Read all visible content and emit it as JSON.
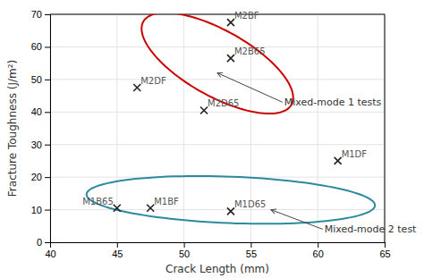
{
  "chart_data": {
    "type": "scatter",
    "x": [
      53.5,
      53.5,
      46.5,
      51.5,
      61.5,
      45.0,
      47.5,
      53.5
    ],
    "values": [
      67.5,
      56.5,
      47.5,
      40.5,
      25.0,
      10.5,
      10.5,
      9.5
    ],
    "labels": [
      "M2BF",
      "M2B65",
      "M2DF",
      "M2D65",
      "M1DF",
      "M1B65",
      "M1BF",
      "M1D65"
    ],
    "color": "#222222",
    "marker": "x",
    "ellipses": [
      {
        "cx": 52.5,
        "cy": 55.0,
        "width": 8,
        "height": 32,
        "angle": 15,
        "color": "#cc0000"
      },
      {
        "cx": 53.5,
        "cy": 13.0,
        "width": 22,
        "height": 14,
        "angle": -15,
        "color": "#2b8a9e"
      }
    ],
    "annotations": [
      {
        "text": "Mixed-mode 1 tests",
        "xy": [
          52.5,
          52.0
        ],
        "xytext": [
          57.5,
          43.0
        ]
      },
      {
        "text": "Mixed-mode 2 test",
        "xy": [
          56.5,
          10.0
        ],
        "xytext": [
          60.5,
          4.0
        ]
      }
    ],
    "x_label": "Crack Length (mm)",
    "y_label": "Fracture Toughness (J/m²)",
    "xlim": [
      40,
      65
    ],
    "ylim": [
      0,
      70
    ],
    "xticks": [
      40,
      45,
      50,
      55,
      60,
      65
    ],
    "yticks": [
      0,
      10,
      20,
      30,
      40,
      50,
      60,
      70
    ],
    "grid": true
  }
}
